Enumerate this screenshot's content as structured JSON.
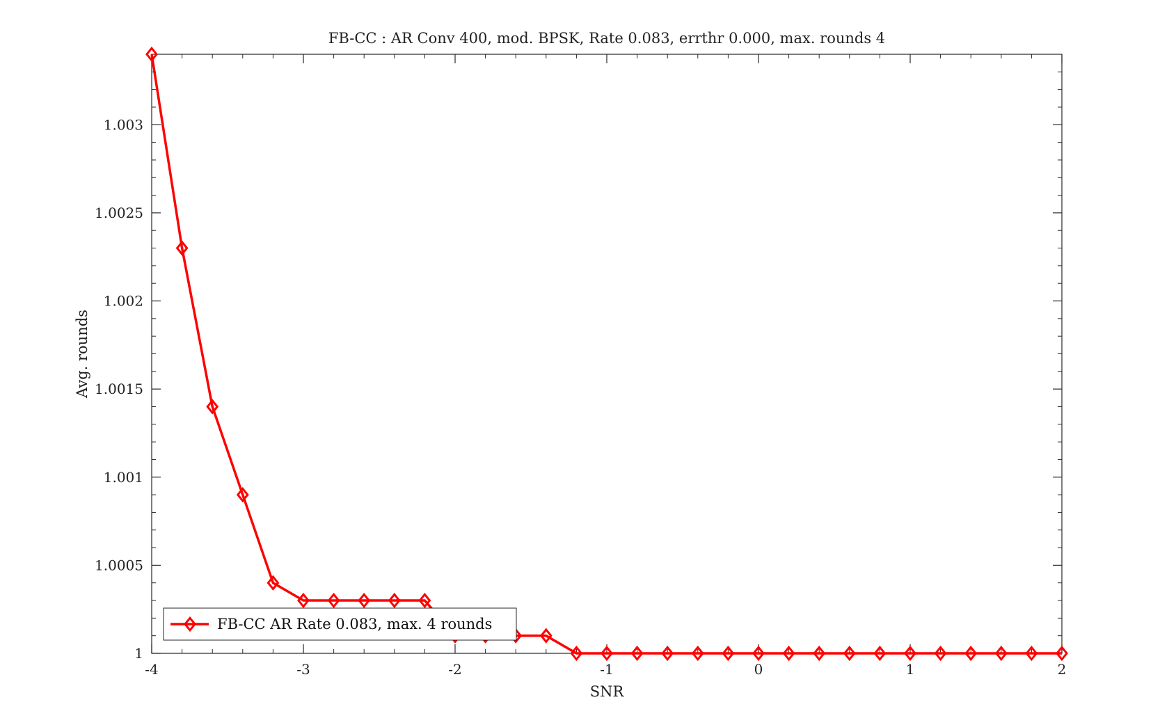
{
  "chart_data": {
    "type": "line",
    "title": "FB-CC : AR Conv 400, mod. BPSK, Rate 0.083, errthr 0.000, max. rounds 4",
    "xlabel": "SNR",
    "ylabel": "Avg. rounds",
    "xlim": [
      -4,
      2
    ],
    "ylim": [
      1,
      1.0034
    ],
    "x_ticks": [
      -4,
      -3,
      -2,
      -1,
      0,
      1,
      2
    ],
    "x_tick_labels": [
      "-4",
      "-3",
      "-2",
      "-1",
      "0",
      "1",
      "2"
    ],
    "y_ticks": [
      1,
      1.0005,
      1.001,
      1.0015,
      1.002,
      1.0025,
      1.003
    ],
    "y_tick_labels": [
      "1",
      "1.0005",
      "1.001",
      "1.0015",
      "1.002",
      "1.0025",
      "1.003"
    ],
    "grid": false,
    "legend_position": "bottom-left",
    "series": [
      {
        "name": "FB-CC AR Rate 0.083, max. 4 rounds",
        "color": "#ff0000",
        "marker": "diamond",
        "x": [
          -4,
          -3.8,
          -3.6,
          -3.4,
          -3.2,
          -3,
          -2.8,
          -2.6,
          -2.4,
          -2.2,
          -2,
          -1.8,
          -1.6,
          -1.4,
          -1.2,
          -1,
          -0.8,
          -0.6,
          -0.4,
          -0.2,
          0,
          0.2,
          0.4,
          0.6,
          0.8,
          1,
          1.2,
          1.4,
          1.6,
          1.8,
          2
        ],
        "y": [
          1.0034,
          1.0023,
          1.0014,
          1.0009,
          1.0004,
          1.0003,
          1.0003,
          1.0003,
          1.0003,
          1.0003,
          1.0001,
          1.0001,
          1.0001,
          1.0001,
          1.0,
          1.0,
          1.0,
          1.0,
          1.0,
          1.0,
          1.0,
          1.0,
          1.0,
          1.0,
          1.0,
          1.0,
          1.0,
          1.0,
          1.0,
          1.0,
          1.0
        ]
      }
    ]
  }
}
